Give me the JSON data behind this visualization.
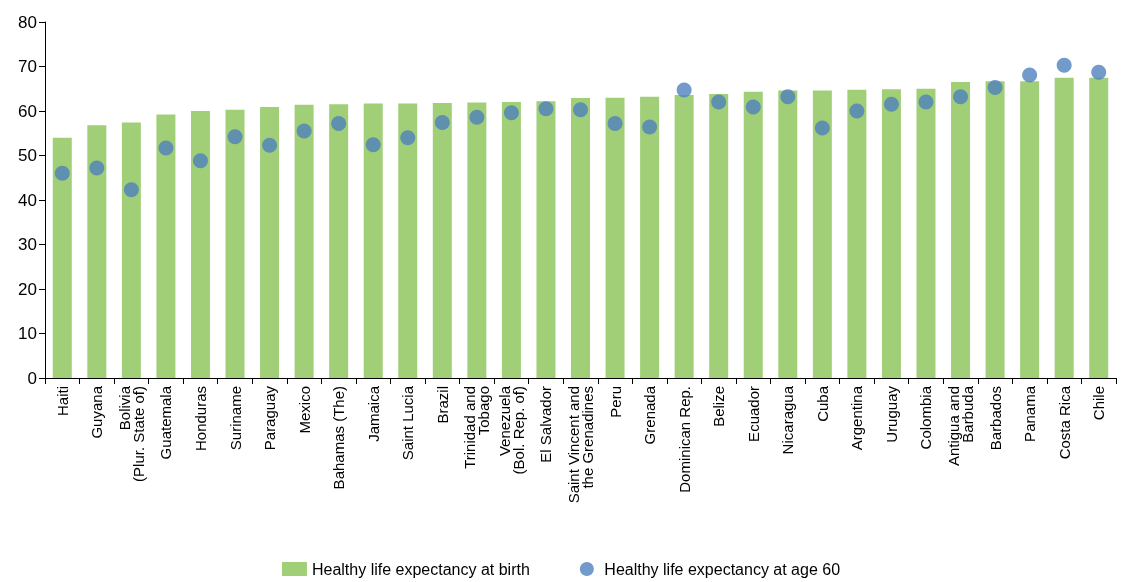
{
  "chart_data": {
    "type": "bar",
    "categories": [
      "Haiti",
      "Guyana",
      "Bolivia\n(Plur. State of)",
      "Guatemala",
      "Honduras",
      "Suriname",
      "Paraguay",
      "Mexico",
      "Bahamas (The)",
      "Jamaica",
      "Saint Lucia",
      "Brazil",
      "Trinidad and\nTobago",
      "Venezuela\n(Bol. Rep. of)",
      "El Salvador",
      "Saint Vincent and\nthe Grenadines",
      "Peru",
      "Grenada",
      "Dominican Rep.",
      "Belize",
      "Ecuador",
      "Nicaragua",
      "Cuba",
      "Argentina",
      "Uruguay",
      "Colombia",
      "Antigua and\nBarbuda",
      "Barbados",
      "Panama",
      "Costa Rica",
      "Chile"
    ],
    "series": [
      {
        "name": "Healthy life expectancy at birth",
        "color": "#a0cf78",
        "values": [
          54,
          56.8,
          57.4,
          59.2,
          60,
          60.3,
          60.9,
          61.4,
          61.5,
          61.7,
          61.7,
          61.8,
          61.9,
          62,
          62.2,
          62.9,
          63,
          63.2,
          63.6,
          63.8,
          64.3,
          64.6,
          64.6,
          64.8,
          64.9,
          65,
          66.5,
          66.7,
          66.7,
          67.5,
          67.5
        ]
      },
      {
        "name": "Healthy life expectancy at age 60",
        "type": "scatter",
        "color": "#4f81bd",
        "values": [
          46,
          47.2,
          42.3,
          51.7,
          48.8,
          54.2,
          52.3,
          55.5,
          57.2,
          52.4,
          54,
          57.4,
          58.6,
          59.6,
          60.5,
          60.3,
          57.2,
          56.4,
          64.7,
          62,
          60.9,
          63.2,
          56.2,
          60,
          61.5,
          62,
          63.2,
          65.3,
          68.1,
          70.3,
          68.7
        ]
      }
    ],
    "ylim": [
      0,
      80
    ],
    "yticks": [
      0,
      10,
      20,
      30,
      40,
      50,
      60,
      70,
      80
    ],
    "grid": false,
    "legend": "bottom",
    "marker": "circle"
  }
}
